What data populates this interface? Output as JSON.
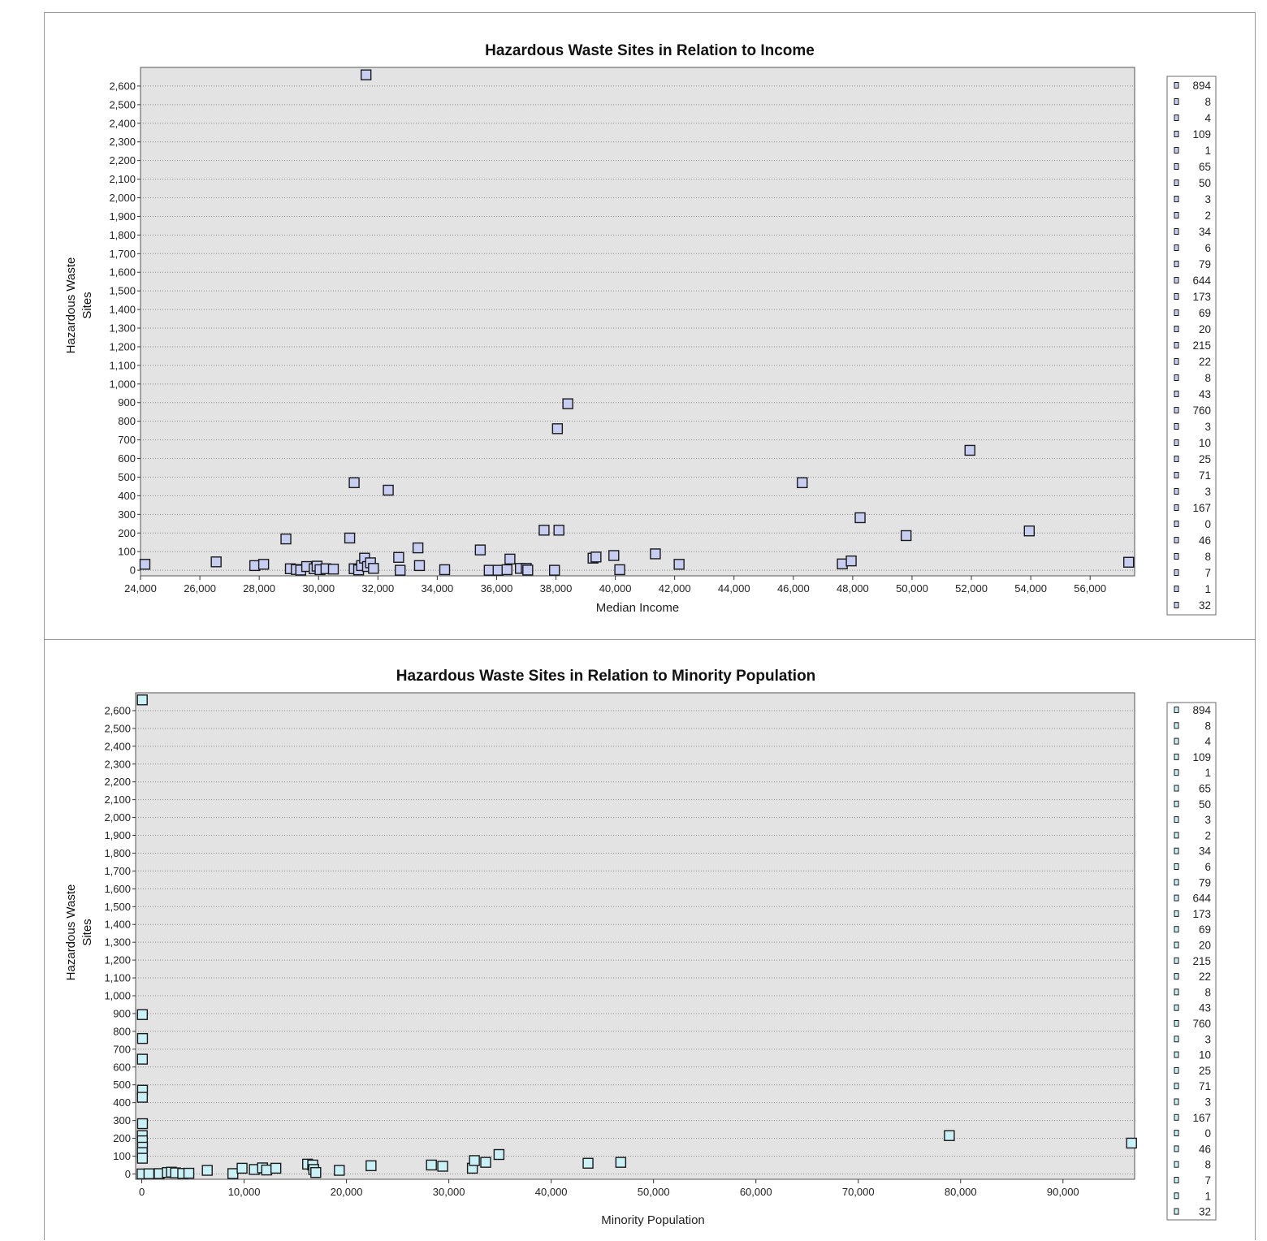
{
  "chart_data": [
    {
      "type": "scatter",
      "title": "Hazardous Waste Sites in Relation to Income",
      "xlabel": "Median Income",
      "ylabel": "Hazardous Waste Sites",
      "xlim": [
        24000,
        57500
      ],
      "ylim": [
        -30,
        2700
      ],
      "xticks": [
        24000,
        26000,
        28000,
        30000,
        32000,
        34000,
        36000,
        38000,
        40000,
        42000,
        44000,
        46000,
        48000,
        50000,
        52000,
        54000,
        56000
      ],
      "xtick_labels": [
        "24,000",
        "26,000",
        "28,000",
        "30,000",
        "32,000",
        "34,000",
        "36,000",
        "38,000",
        "40,000",
        "42,000",
        "44,000",
        "46,000",
        "48,000",
        "50,000",
        "52,000",
        "54,000",
        "56,000"
      ],
      "yticks": [
        0,
        100,
        200,
        300,
        400,
        500,
        600,
        700,
        800,
        900,
        1000,
        1100,
        1200,
        1300,
        1400,
        1500,
        1600,
        1700,
        1800,
        1900,
        2000,
        2100,
        2200,
        2300,
        2400,
        2500,
        2600
      ],
      "ytick_labels": [
        "0",
        "100",
        "200",
        "300",
        "400",
        "500",
        "600",
        "700",
        "800",
        "900",
        "1,000",
        "1,100",
        "1,200",
        "1,300",
        "1,400",
        "1,500",
        "1,600",
        "1,700",
        "1,800",
        "1,900",
        "2,000",
        "2,100",
        "2,200",
        "2,300",
        "2,400",
        "2,500",
        "2,600"
      ],
      "grid": true,
      "legend_position": "right",
      "legend": [
        "894",
        "8",
        "4",
        "109",
        "1",
        "65",
        "50",
        "3",
        "2",
        "34",
        "6",
        "79",
        "644",
        "173",
        "69",
        "20",
        "215",
        "22",
        "8",
        "43",
        "760",
        "3",
        "10",
        "25",
        "71",
        "3",
        "167",
        "0",
        "46",
        "8",
        "7",
        "1",
        "32"
      ],
      "marker_color": "#c8cdf2",
      "points": [
        {
          "x": 24150,
          "y": 32
        },
        {
          "x": 26550,
          "y": 45
        },
        {
          "x": 27850,
          "y": 25
        },
        {
          "x": 28150,
          "y": 32
        },
        {
          "x": 28900,
          "y": 168
        },
        {
          "x": 29050,
          "y": 8
        },
        {
          "x": 29250,
          "y": 4
        },
        {
          "x": 29400,
          "y": 1
        },
        {
          "x": 29600,
          "y": 20
        },
        {
          "x": 29850,
          "y": 8
        },
        {
          "x": 29950,
          "y": 22
        },
        {
          "x": 30050,
          "y": 3
        },
        {
          "x": 30250,
          "y": 8
        },
        {
          "x": 30500,
          "y": 6
        },
        {
          "x": 31050,
          "y": 173
        },
        {
          "x": 31200,
          "y": 470
        },
        {
          "x": 31200,
          "y": 8
        },
        {
          "x": 31350,
          "y": 2
        },
        {
          "x": 31450,
          "y": 25
        },
        {
          "x": 31550,
          "y": 65
        },
        {
          "x": 31600,
          "y": 2660
        },
        {
          "x": 31650,
          "y": 20
        },
        {
          "x": 31750,
          "y": 40
        },
        {
          "x": 31850,
          "y": 10
        },
        {
          "x": 32350,
          "y": 430
        },
        {
          "x": 32700,
          "y": 69
        },
        {
          "x": 32750,
          "y": 0
        },
        {
          "x": 33350,
          "y": 120
        },
        {
          "x": 33400,
          "y": 25
        },
        {
          "x": 34250,
          "y": 3
        },
        {
          "x": 35450,
          "y": 109
        },
        {
          "x": 35750,
          "y": 0
        },
        {
          "x": 36050,
          "y": 0
        },
        {
          "x": 36350,
          "y": 3
        },
        {
          "x": 36450,
          "y": 60
        },
        {
          "x": 36800,
          "y": 10
        },
        {
          "x": 37000,
          "y": 10
        },
        {
          "x": 37050,
          "y": 1
        },
        {
          "x": 37600,
          "y": 215
        },
        {
          "x": 37950,
          "y": 0
        },
        {
          "x": 38050,
          "y": 760
        },
        {
          "x": 38100,
          "y": 215
        },
        {
          "x": 38400,
          "y": 894
        },
        {
          "x": 39250,
          "y": 65
        },
        {
          "x": 39350,
          "y": 71
        },
        {
          "x": 39950,
          "y": 79
        },
        {
          "x": 40150,
          "y": 3
        },
        {
          "x": 41350,
          "y": 88
        },
        {
          "x": 42150,
          "y": 32
        },
        {
          "x": 46300,
          "y": 470
        },
        {
          "x": 47650,
          "y": 34
        },
        {
          "x": 47950,
          "y": 50
        },
        {
          "x": 48250,
          "y": 282
        },
        {
          "x": 49800,
          "y": 186
        },
        {
          "x": 51950,
          "y": 644
        },
        {
          "x": 53950,
          "y": 211
        },
        {
          "x": 57300,
          "y": 43
        }
      ]
    },
    {
      "type": "scatter",
      "title": "Hazardous Waste Sites in Relation to Minority Population",
      "xlabel": "Minority Population",
      "ylabel": "Hazardous Waste Sites",
      "xlim": [
        -600,
        97000
      ],
      "ylim": [
        -30,
        2700
      ],
      "xticks": [
        0,
        10000,
        20000,
        30000,
        40000,
        50000,
        60000,
        70000,
        80000,
        90000
      ],
      "xtick_labels": [
        "0",
        "10,000",
        "20,000",
        "30,000",
        "40,000",
        "50,000",
        "60,000",
        "70,000",
        "80,000",
        "90,000"
      ],
      "yticks": [
        0,
        100,
        200,
        300,
        400,
        500,
        600,
        700,
        800,
        900,
        1000,
        1100,
        1200,
        1300,
        1400,
        1500,
        1600,
        1700,
        1800,
        1900,
        2000,
        2100,
        2200,
        2300,
        2400,
        2500,
        2600
      ],
      "ytick_labels": [
        "0",
        "100",
        "200",
        "300",
        "400",
        "500",
        "600",
        "700",
        "800",
        "900",
        "1,000",
        "1,100",
        "1,200",
        "1,300",
        "1,400",
        "1,500",
        "1,600",
        "1,700",
        "1,800",
        "1,900",
        "2,000",
        "2,100",
        "2,200",
        "2,300",
        "2,400",
        "2,500",
        "2,600"
      ],
      "grid": true,
      "legend_position": "right",
      "legend": [
        "894",
        "8",
        "4",
        "109",
        "1",
        "65",
        "50",
        "3",
        "2",
        "34",
        "6",
        "79",
        "644",
        "173",
        "69",
        "20",
        "215",
        "22",
        "8",
        "43",
        "760",
        "3",
        "10",
        "25",
        "71",
        "3",
        "167",
        "0",
        "46",
        "8",
        "7",
        "1",
        "32"
      ],
      "marker_color": "#c9f1f6",
      "points": [
        {
          "x": 50,
          "y": 2660
        },
        {
          "x": 60,
          "y": 894
        },
        {
          "x": 70,
          "y": 760
        },
        {
          "x": 60,
          "y": 644
        },
        {
          "x": 70,
          "y": 470
        },
        {
          "x": 60,
          "y": 430
        },
        {
          "x": 70,
          "y": 282
        },
        {
          "x": 50,
          "y": 215
        },
        {
          "x": 60,
          "y": 186
        },
        {
          "x": 70,
          "y": 150
        },
        {
          "x": 50,
          "y": 120
        },
        {
          "x": 60,
          "y": 88
        },
        {
          "x": 30,
          "y": 0
        },
        {
          "x": 700,
          "y": 1
        },
        {
          "x": 1700,
          "y": 2
        },
        {
          "x": 2500,
          "y": 8
        },
        {
          "x": 2900,
          "y": 10
        },
        {
          "x": 3300,
          "y": 6
        },
        {
          "x": 4000,
          "y": 3
        },
        {
          "x": 4600,
          "y": 4
        },
        {
          "x": 6400,
          "y": 20
        },
        {
          "x": 8900,
          "y": 2
        },
        {
          "x": 9800,
          "y": 32
        },
        {
          "x": 11000,
          "y": 25
        },
        {
          "x": 11800,
          "y": 34
        },
        {
          "x": 12200,
          "y": 22
        },
        {
          "x": 13100,
          "y": 32
        },
        {
          "x": 16200,
          "y": 55
        },
        {
          "x": 16700,
          "y": 50
        },
        {
          "x": 16800,
          "y": 25
        },
        {
          "x": 17000,
          "y": 8
        },
        {
          "x": 19300,
          "y": 20
        },
        {
          "x": 22400,
          "y": 46
        },
        {
          "x": 28300,
          "y": 50
        },
        {
          "x": 29400,
          "y": 43
        },
        {
          "x": 32300,
          "y": 32
        },
        {
          "x": 32500,
          "y": 75
        },
        {
          "x": 33600,
          "y": 65
        },
        {
          "x": 34900,
          "y": 109
        },
        {
          "x": 43600,
          "y": 60
        },
        {
          "x": 46800,
          "y": 65
        },
        {
          "x": 78900,
          "y": 215
        },
        {
          "x": 96700,
          "y": 173
        }
      ]
    }
  ]
}
